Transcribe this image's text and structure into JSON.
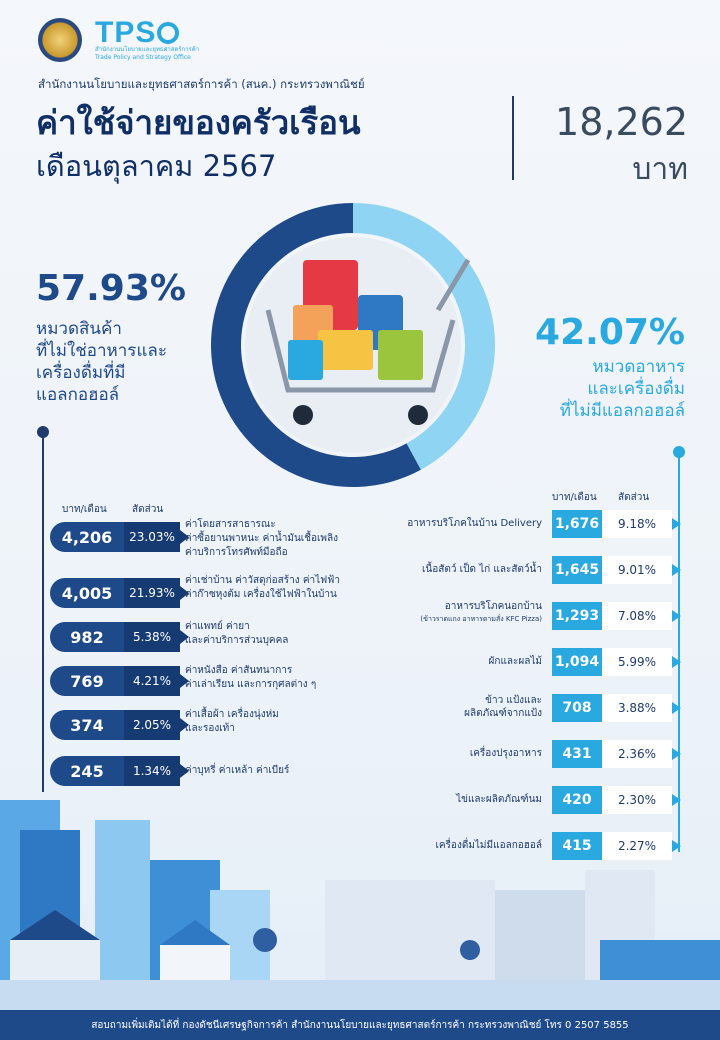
{
  "header": {
    "logo_text": "TPS",
    "logo_sub": "สำนักงานนโยบายและยุทธศาสตร์การค้า Trade Policy and Strategy Office",
    "org": "สำนักงานนโยบายและยุทธศาสตร์การค้า (สนค.) กระทรวงพาณิชย์",
    "title": "ค่าใช้จ่ายของครัวเรือน",
    "subtitle": "เดือนตุลาคม 2567",
    "total": "18,262",
    "unit": "บาท"
  },
  "chart_data": {
    "type": "pie",
    "categories": [
      "หมวดสินค้าที่ไม่ใช่อาหารและเครื่องดื่มที่มีแอลกอฮอล์",
      "หมวดอาหารและเครื่องดื่มที่ไม่มีแอลกอฮอล์"
    ],
    "values": [
      57.93,
      42.07
    ],
    "colors": [
      "#1f4a8a",
      "#8fd4f2"
    ]
  },
  "left_summary": {
    "pct": "57.93%",
    "label_lines": [
      "หมวดสินค้า",
      "ที่ไม่ใช่อาหารและ",
      "เครื่องดื่มที่มี",
      "แอลกอฮอล์"
    ]
  },
  "right_summary": {
    "pct": "42.07%",
    "label_lines": [
      "หมวดอาหาร",
      "และเครื่องดื่ม",
      "ที่ไม่มีแอลกอฮอล์"
    ]
  },
  "left_table": {
    "col_value": "บาท/เดือน",
    "col_pct": "สัดส่วน",
    "rows": [
      {
        "value": "4,206",
        "pct": "23.03%",
        "desc": [
          "ค่าโดยสารสาธารณะ",
          "ค่าซื้อยานพาหนะ ค่าน้ำมันเชื้อเพลิง",
          "ค่าบริการโทรศัพท์มือถือ"
        ]
      },
      {
        "value": "4,005",
        "pct": "21.93%",
        "desc": [
          "ค่าเช่าบ้าน ค่าวัสดุก่อสร้าง ค่าไฟฟ้า",
          "ค่าก๊าซหุงต้ม เครื่องใช้ไฟฟ้าในบ้าน"
        ]
      },
      {
        "value": "982",
        "pct": "5.38%",
        "desc": [
          "ค่าแพทย์ ค่ายา",
          "และค่าบริการส่วนบุคคล"
        ]
      },
      {
        "value": "769",
        "pct": "4.21%",
        "desc": [
          "ค่าหนังสือ ค่าสันทนาการ",
          "ค่าเล่าเรียน และการกุศลต่าง ๆ"
        ]
      },
      {
        "value": "374",
        "pct": "2.05%",
        "desc": [
          "ค่าเสื้อผ้า เครื่องนุ่งห่ม",
          "และรองเท้า"
        ]
      },
      {
        "value": "245",
        "pct": "1.34%",
        "desc": [
          "ค่าบุหรี่ ค่าเหล้า ค่าเบียร์"
        ]
      }
    ]
  },
  "right_table": {
    "col_value": "บาท/เดือน",
    "col_pct": "สัดส่วน",
    "rows": [
      {
        "value": "1,676",
        "pct": "9.18%",
        "desc": [
          "อาหารบริโภคในบ้าน Delivery"
        ],
        "note": ""
      },
      {
        "value": "1,645",
        "pct": "9.01%",
        "desc": [
          "เนื้อสัตว์ เป็ด ไก่ และสัตว์น้ำ"
        ],
        "note": ""
      },
      {
        "value": "1,293",
        "pct": "7.08%",
        "desc": [
          "อาหารบริโภคนอกบ้าน"
        ],
        "note": "(ข้าวราดแกง อาหารตามสั่ง KFC Pizza)"
      },
      {
        "value": "1,094",
        "pct": "5.99%",
        "desc": [
          "ผักและผลไม้"
        ],
        "note": ""
      },
      {
        "value": "708",
        "pct": "3.88%",
        "desc": [
          "ข้าว แป้งและ",
          "ผลิตภัณฑ์จากแป้ง"
        ],
        "note": ""
      },
      {
        "value": "431",
        "pct": "2.36%",
        "desc": [
          "เครื่องปรุงอาหาร"
        ],
        "note": ""
      },
      {
        "value": "420",
        "pct": "2.30%",
        "desc": [
          "ไข่และผลิตภัณฑ์นม"
        ],
        "note": ""
      },
      {
        "value": "415",
        "pct": "2.27%",
        "desc": [
          "เครื่องดื่มไม่มีแอลกอฮอล์"
        ],
        "note": ""
      }
    ]
  },
  "footer": "สอบถามเพิ่มเติมได้ที่ กองดัชนีเศรษฐกิจการค้า สำนักงานนโยบายและยุทธศาสตร์การค้า กระทรวงพาณิชย์ โทร 0 2507 5855"
}
